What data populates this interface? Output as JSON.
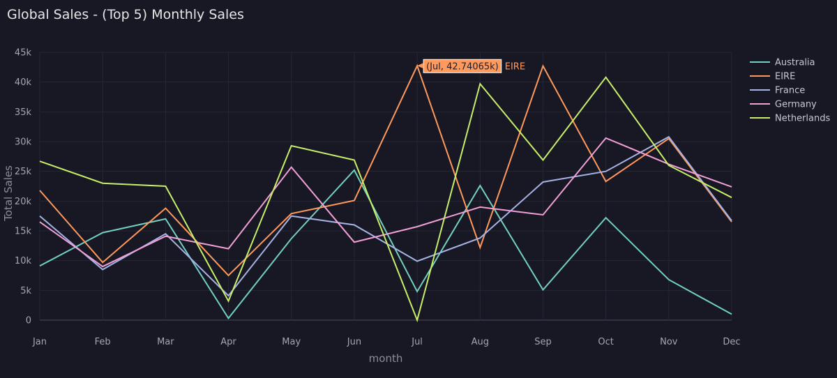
{
  "chart_data": {
    "type": "line",
    "title": "Global Sales - (Top 5) Monthly Sales",
    "xlabel": "month",
    "ylabel": "Total Sales",
    "categories": [
      "Jan",
      "Feb",
      "Mar",
      "Apr",
      "May",
      "Jun",
      "Jul",
      "Aug",
      "Sep",
      "Oct",
      "Nov",
      "Dec"
    ],
    "ylim": [
      0,
      45000
    ],
    "yticks": [
      0,
      5000,
      10000,
      15000,
      20000,
      25000,
      30000,
      35000,
      40000,
      45000
    ],
    "ytick_labels": [
      "0",
      "5k",
      "10k",
      "15k",
      "20k",
      "25k",
      "30k",
      "35k",
      "40k",
      "45k"
    ],
    "grid": true,
    "legend": "right",
    "series": [
      {
        "name": "Australia",
        "color": "#72d1c0",
        "values": [
          9100,
          14700,
          17000,
          300,
          13700,
          25200,
          4800,
          22600,
          5100,
          17200,
          6800,
          1000
        ]
      },
      {
        "name": "EIRE",
        "color": "#ff9a5c",
        "values": [
          21800,
          9700,
          18800,
          7500,
          17900,
          20100,
          42740.65,
          12200,
          42700,
          23300,
          30500,
          16500
        ]
      },
      {
        "name": "France",
        "color": "#a6b3e6",
        "values": [
          17500,
          8500,
          14500,
          4100,
          17500,
          16000,
          9900,
          13800,
          23200,
          25000,
          30800,
          16700
        ]
      },
      {
        "name": "Germany",
        "color": "#f2a0d8",
        "values": [
          16500,
          9000,
          14100,
          12000,
          25700,
          13100,
          15700,
          19000,
          17700,
          30600,
          26200,
          22400
        ]
      },
      {
        "name": "Netherlands",
        "color": "#c9ef6a",
        "values": [
          26700,
          23000,
          22500,
          3200,
          29300,
          26900,
          0,
          39700,
          26900,
          40800,
          26000,
          20600
        ]
      }
    ],
    "hover": {
      "series_index": 1,
      "point_index": 6,
      "label": "(Jul, 42.74065k)",
      "series_name": "EIRE"
    }
  }
}
